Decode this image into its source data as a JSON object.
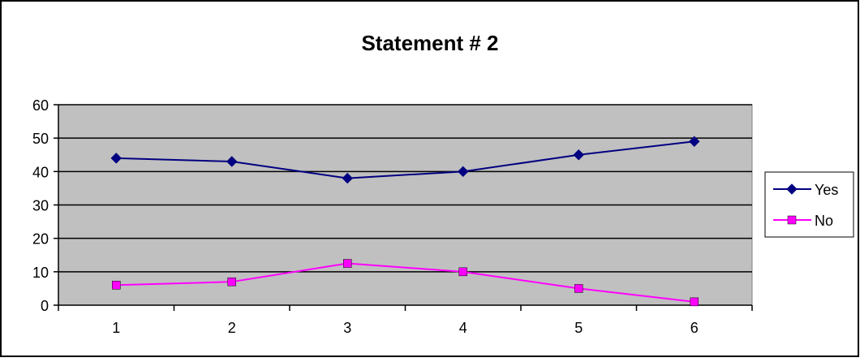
{
  "chart_data": {
    "type": "line",
    "title": "Statement # 2",
    "xlabel": "",
    "ylabel": "",
    "categories": [
      "1",
      "2",
      "3",
      "4",
      "5",
      "6"
    ],
    "ylim": [
      0,
      60
    ],
    "yticks": [
      0,
      10,
      20,
      30,
      40,
      50,
      60
    ],
    "grid": true,
    "legend_position": "right",
    "plot_background": "#c0c0c0",
    "series": [
      {
        "name": "Yes",
        "color": "#000080",
        "marker": "diamond",
        "values": [
          44,
          43,
          38,
          40,
          45,
          49
        ]
      },
      {
        "name": "No",
        "color": "#ff00ff",
        "marker": "square",
        "values": [
          6,
          7,
          12.5,
          10,
          5,
          1
        ]
      }
    ]
  }
}
